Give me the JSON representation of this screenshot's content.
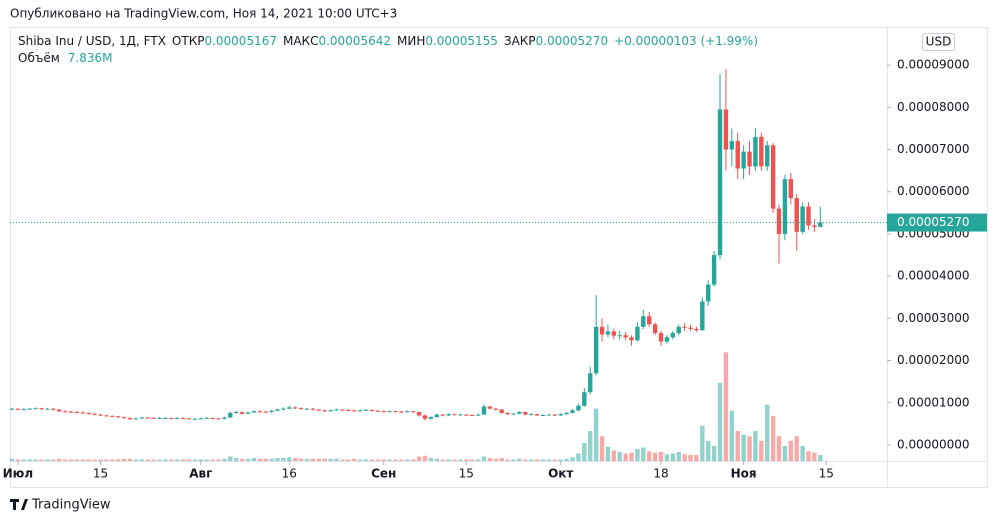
{
  "chart_data": {
    "type": "candlestick",
    "published": "Опубликовано на TradingView.com, Ноя 14, 2021 10:00 UTC+3",
    "symbol": "Shiba Inu / USD, 1Д, FTX",
    "legend_fields": [
      {
        "label": "ОТКР",
        "value": "0.00005167"
      },
      {
        "label": "МАКС",
        "value": "0.00005642"
      },
      {
        "label": "МИН",
        "value": "0.00005155"
      },
      {
        "label": "ЗАКР",
        "value": "0.00005270"
      }
    ],
    "change": "+0.00000103 (+1.99%)",
    "volume_title": "Объём",
    "volume_label": "7.836M",
    "currency": "USD",
    "last_price_label": "0.00005270",
    "brand": "TradingView",
    "up_color": "#26a69a",
    "down_color": "#ef5350",
    "xlim": [
      -0.34,
      148.3
    ],
    "xticks": [
      {
        "value": 1,
        "label": "Июл"
      },
      {
        "value": 15,
        "label": "15"
      },
      {
        "value": 32,
        "label": "Авг"
      },
      {
        "value": 47,
        "label": "16"
      },
      {
        "value": 63,
        "label": "Сен"
      },
      {
        "value": 77,
        "label": "15"
      },
      {
        "value": 93,
        "label": "Окт"
      },
      {
        "value": 110,
        "label": "18"
      },
      {
        "value": 124,
        "label": "Ноя"
      },
      {
        "value": 138,
        "label": "15"
      }
    ],
    "ylim": [
      -3.8e-06,
      9.88e-05
    ],
    "yticks": [
      {
        "value": 0,
        "label": "0.00000000"
      },
      {
        "value": 1e-05,
        "label": "0.00001000"
      },
      {
        "value": 2e-05,
        "label": "0.00002000"
      },
      {
        "value": 3e-05,
        "label": "0.00003000"
      },
      {
        "value": 4e-05,
        "label": "0.00004000"
      },
      {
        "value": 5e-05,
        "label": "0.00005000"
      },
      {
        "value": 6e-05,
        "label": "0.00006000"
      },
      {
        "value": 7e-05,
        "label": "0.00007000"
      },
      {
        "value": 8e-05,
        "label": "0.00008000"
      },
      {
        "value": 9e-05,
        "label": "0.00009000"
      }
    ],
    "volume_lim": [
      0,
      160
    ],
    "ohlc": [
      [
        8.5e-06,
        8.8e-06,
        8.3e-06,
        8.6e-06
      ],
      [
        8.6e-06,
        8.7e-06,
        8.2e-06,
        8.4e-06
      ],
      [
        8.4e-06,
        8.7e-06,
        8.3e-06,
        8.5e-06
      ],
      [
        8.5e-06,
        8.8e-06,
        8.4e-06,
        8.6e-06
      ],
      [
        8.6e-06,
        8.9e-06,
        8.5e-06,
        8.7e-06
      ],
      [
        8.7e-06,
        8.8e-06,
        8.3e-06,
        8.5e-06
      ],
      [
        8.5e-06,
        8.8e-06,
        8.4e-06,
        8.6e-06
      ],
      [
        8.6e-06,
        8.7e-06,
        8.2e-06,
        8.4e-06
      ],
      [
        8.4e-06,
        8.5e-06,
        7.8e-06,
        8e-06
      ],
      [
        8e-06,
        8.2e-06,
        7.7e-06,
        7.9e-06
      ],
      [
        7.9e-06,
        8.1e-06,
        7.6e-06,
        7.8e-06
      ],
      [
        7.8e-06,
        8e-06,
        7.5e-06,
        7.7e-06
      ],
      [
        7.7e-06,
        7.9e-06,
        7.4e-06,
        7.6e-06
      ],
      [
        7.6e-06,
        7.7e-06,
        7.2e-06,
        7.4e-06
      ],
      [
        7.4e-06,
        7.6e-06,
        7e-06,
        7.2e-06
      ],
      [
        7.2e-06,
        7.4e-06,
        6.9e-06,
        7e-06
      ],
      [
        7e-06,
        7.2e-06,
        6.8e-06,
        6.9e-06
      ],
      [
        6.9e-06,
        7e-06,
        6.6e-06,
        6.8e-06
      ],
      [
        6.8e-06,
        6.9e-06,
        6.4e-06,
        6.6e-06
      ],
      [
        6.6e-06,
        6.7e-06,
        6.2e-06,
        6.4e-06
      ],
      [
        6.4e-06,
        6.5e-06,
        5.9e-06,
        6.1e-06
      ],
      [
        6.1e-06,
        6.5e-06,
        6e-06,
        6.3e-06
      ],
      [
        6.3e-06,
        6.7e-06,
        6.2e-06,
        6.5e-06
      ],
      [
        6.5e-06,
        6.6e-06,
        6.2e-06,
        6.4e-06
      ],
      [
        6.4e-06,
        6.6e-06,
        6.2e-06,
        6.3e-06
      ],
      [
        6.3e-06,
        6.6e-06,
        6.2e-06,
        6.4e-06
      ],
      [
        6.4e-06,
        6.6e-06,
        6.2e-06,
        6.4e-06
      ],
      [
        6.4e-06,
        6.5e-06,
        6.1e-06,
        6.3e-06
      ],
      [
        6.3e-06,
        6.6e-06,
        6.2e-06,
        6.4e-06
      ],
      [
        6.4e-06,
        6.5e-06,
        6.1e-06,
        6.3e-06
      ],
      [
        6.3e-06,
        6.4e-06,
        6e-06,
        6.2e-06
      ],
      [
        6.2e-06,
        6.4e-06,
        6.1e-06,
        6.2e-06
      ],
      [
        6.2e-06,
        6.5e-06,
        6.1e-06,
        6.3e-06
      ],
      [
        6.3e-06,
        6.6e-06,
        6.2e-06,
        6.4e-06
      ],
      [
        6.4e-06,
        6.5e-06,
        6.1e-06,
        6.3e-06
      ],
      [
        6.3e-06,
        6.4e-06,
        6e-06,
        6.2e-06
      ],
      [
        6.2e-06,
        6.7e-06,
        6.1e-06,
        6.5e-06
      ],
      [
        6.5e-06,
        7.9e-06,
        6.4e-06,
        7.6e-06
      ],
      [
        7.6e-06,
        8.1e-06,
        7.4e-06,
        7.8e-06
      ],
      [
        7.8e-06,
        7.9e-06,
        7.2e-06,
        7.4e-06
      ],
      [
        7.4e-06,
        7.9e-06,
        7.3e-06,
        7.7e-06
      ],
      [
        7.7e-06,
        8.2e-06,
        7.6e-06,
        8e-06
      ],
      [
        8e-06,
        8.2e-06,
        7.7e-06,
        7.9e-06
      ],
      [
        7.9e-06,
        8.1e-06,
        7.6e-06,
        7.8e-06
      ],
      [
        7.8e-06,
        8.3e-06,
        7.7e-06,
        8.1e-06
      ],
      [
        8.1e-06,
        8.6e-06,
        8e-06,
        8.4e-06
      ],
      [
        8.4e-06,
        8.9e-06,
        8.3e-06,
        8.6e-06
      ],
      [
        8.6e-06,
        9.3e-06,
        8.5e-06,
        8.9e-06
      ],
      [
        8.9e-06,
        9.1e-06,
        8.5e-06,
        8.7e-06
      ],
      [
        8.7e-06,
        8.9e-06,
        8.3e-06,
        8.5e-06
      ],
      [
        8.5e-06,
        8.8e-06,
        8.4e-06,
        8.6e-06
      ],
      [
        8.6e-06,
        8.8e-06,
        8.2e-06,
        8.4e-06
      ],
      [
        8.4e-06,
        8.5e-06,
        8e-06,
        8.2e-06
      ],
      [
        8.2e-06,
        8.4e-06,
        7.8e-06,
        8e-06
      ],
      [
        8e-06,
        8.4e-06,
        7.9e-06,
        8.2e-06
      ],
      [
        8.2e-06,
        8.6e-06,
        8.1e-06,
        8.4e-06
      ],
      [
        8.4e-06,
        8.5e-06,
        8.1e-06,
        8.3e-06
      ],
      [
        8.3e-06,
        8.5e-06,
        8e-06,
        8.2e-06
      ],
      [
        8.2e-06,
        8.3e-06,
        7.8e-06,
        8e-06
      ],
      [
        8e-06,
        8.4e-06,
        7.9e-06,
        8.2e-06
      ],
      [
        8.2e-06,
        8.5e-06,
        8.1e-06,
        8.3e-06
      ],
      [
        8.3e-06,
        8.4e-06,
        7.9e-06,
        8.1e-06
      ],
      [
        8.1e-06,
        8.3e-06,
        7.8e-06,
        8e-06
      ],
      [
        8e-06,
        8.2e-06,
        7.7e-06,
        7.9e-06
      ],
      [
        7.9e-06,
        8.2e-06,
        7.8e-06,
        8e-06
      ],
      [
        8e-06,
        8.1e-06,
        7.7e-06,
        7.9e-06
      ],
      [
        7.9e-06,
        8.1e-06,
        7.6e-06,
        7.8e-06
      ],
      [
        7.8e-06,
        8.2e-06,
        7.7e-06,
        8e-06
      ],
      [
        8e-06,
        8.1e-06,
        7.6e-06,
        7.8e-06
      ],
      [
        7.8e-06,
        7.9e-06,
        6.8e-06,
        7e-06
      ],
      [
        7e-06,
        7.2e-06,
        5.8e-06,
        6.2e-06
      ],
      [
        6.2e-06,
        6.8e-06,
        6e-06,
        6.6e-06
      ],
      [
        6.6e-06,
        7.4e-06,
        6.5e-06,
        7.2e-06
      ],
      [
        7.2e-06,
        7.3e-06,
        6.8e-06,
        7e-06
      ],
      [
        7e-06,
        7.5e-06,
        6.9e-06,
        7.3e-06
      ],
      [
        7.3e-06,
        7.4e-06,
        7e-06,
        7.2e-06
      ],
      [
        7.2e-06,
        7.4e-06,
        7e-06,
        7.2e-06
      ],
      [
        7.2e-06,
        7.3e-06,
        6.9e-06,
        7.1e-06
      ],
      [
        7.1e-06,
        7.2e-06,
        6.8e-06,
        7e-06
      ],
      [
        7e-06,
        7.4e-06,
        6.9e-06,
        7.2e-06
      ],
      [
        7.2e-06,
        9.6e-06,
        7.1e-06,
        9.1e-06
      ],
      [
        9.1e-06,
        9.3e-06,
        8.4e-06,
        8.6e-06
      ],
      [
        8.6e-06,
        8.8e-06,
        8.1e-06,
        8.4e-06
      ],
      [
        8.4e-06,
        8.5e-06,
        7.4e-06,
        7.6e-06
      ],
      [
        7.6e-06,
        7.7e-06,
        7.1e-06,
        7.3e-06
      ],
      [
        7.3e-06,
        7.6e-06,
        7.2e-06,
        7.4e-06
      ],
      [
        7.4e-06,
        8e-06,
        7.3e-06,
        7.8e-06
      ],
      [
        7.8e-06,
        7.9e-06,
        7e-06,
        7.2e-06
      ],
      [
        7.2e-06,
        7.5e-06,
        7.1e-06,
        7.3e-06
      ],
      [
        7.3e-06,
        7.4e-06,
        6.8e-06,
        7e-06
      ],
      [
        7e-06,
        7.3e-06,
        6.9e-06,
        7.1e-06
      ],
      [
        7.1e-06,
        7.4e-06,
        7e-06,
        7.2e-06
      ],
      [
        7.2e-06,
        7.3e-06,
        6.8e-06,
        7e-06
      ],
      [
        7e-06,
        7.5e-06,
        6.9e-06,
        7.3e-06
      ],
      [
        7.3e-06,
        7.8e-06,
        7.2e-06,
        7.6e-06
      ],
      [
        7.6e-06,
        8.5e-06,
        7.5e-06,
        8.2e-06
      ],
      [
        8.2e-06,
        9.8e-06,
        8e-06,
        9.3e-06
      ],
      [
        9.3e-06,
        1.35e-05,
        9e-06,
        1.25e-05
      ],
      [
        1.25e-05,
        1.85e-05,
        1.2e-05,
        1.7e-05
      ],
      [
        1.7e-05,
        3.55e-05,
        1.65e-05,
        2.8e-05
      ],
      [
        2.8e-05,
        3e-05,
        2.45e-05,
        2.62e-05
      ],
      [
        2.62e-05,
        2.85e-05,
        2.55e-05,
        2.69e-05
      ],
      [
        2.69e-05,
        2.75e-05,
        2.5e-05,
        2.59e-05
      ],
      [
        2.59e-05,
        2.7e-05,
        2.5e-05,
        2.6e-05
      ],
      [
        2.6e-05,
        2.68e-05,
        2.48e-05,
        2.55e-05
      ],
      [
        2.55e-05,
        2.6e-05,
        2.35e-05,
        2.48e-05
      ],
      [
        2.48e-05,
        2.9e-05,
        2.45e-05,
        2.8e-05
      ],
      [
        2.8e-05,
        3.2e-05,
        2.75e-05,
        3.05e-05
      ],
      [
        3.05e-05,
        3.15e-05,
        2.8e-05,
        2.86e-05
      ],
      [
        2.86e-05,
        2.9e-05,
        2.6e-05,
        2.65e-05
      ],
      [
        2.65e-05,
        2.7e-05,
        2.35e-05,
        2.45e-05
      ],
      [
        2.45e-05,
        2.6e-05,
        2.4e-05,
        2.55e-05
      ],
      [
        2.55e-05,
        2.7e-05,
        2.5e-05,
        2.65e-05
      ],
      [
        2.65e-05,
        2.85e-05,
        2.6e-05,
        2.8e-05
      ],
      [
        2.8e-05,
        2.88e-05,
        2.7e-05,
        2.78e-05
      ],
      [
        2.78e-05,
        2.85e-05,
        2.7e-05,
        2.75e-05
      ],
      [
        2.75e-05,
        2.8e-05,
        2.68e-05,
        2.72e-05
      ],
      [
        2.72e-05,
        3.5e-05,
        2.7e-05,
        3.4e-05
      ],
      [
        3.4e-05,
        3.9e-05,
        3.3e-05,
        3.8e-05
      ],
      [
        3.8e-05,
        4.6e-05,
        3.75e-05,
        4.5e-05
      ],
      [
        4.5e-05,
        8.8e-05,
        4.4e-05,
        7.95e-05
      ],
      [
        7.95e-05,
        8.9e-05,
        6.5e-05,
        7e-05
      ],
      [
        7e-05,
        7.5e-05,
        6.6e-05,
        7.2e-05
      ],
      [
        7.2e-05,
        7.4e-05,
        6.3e-05,
        6.55e-05
      ],
      [
        6.55e-05,
        7.1e-05,
        6.3e-05,
        6.95e-05
      ],
      [
        6.95e-05,
        7.2e-05,
        6.4e-05,
        6.6e-05
      ],
      [
        6.6e-05,
        7.5e-05,
        6.5e-05,
        7.3e-05
      ],
      [
        7.3e-05,
        7.4e-05,
        6.5e-05,
        6.6e-05
      ],
      [
        6.6e-05,
        7.2e-05,
        6.5e-05,
        7.1e-05
      ],
      [
        7.1e-05,
        7.15e-05,
        5.5e-05,
        5.6e-05
      ],
      [
        5.6e-05,
        5.7e-05,
        4.3e-05,
        5e-05
      ],
      [
        5e-05,
        6.4e-05,
        4.85e-05,
        6.3e-05
      ],
      [
        6.3e-05,
        6.45e-05,
        5.7e-05,
        5.85e-05
      ],
      [
        5.85e-05,
        5.95e-05,
        4.6e-05,
        5.05e-05
      ],
      [
        5.05e-05,
        5.75e-05,
        5e-05,
        5.65e-05
      ],
      [
        5.65e-05,
        5.75e-05,
        5.1e-05,
        5.2e-05
      ],
      [
        5.2e-05,
        5.35e-05,
        5.05e-05,
        5.167e-05
      ],
      [
        5.167e-05,
        5.642e-05,
        5.155e-05,
        5.27e-05
      ]
    ],
    "volume": [
      3,
      2,
      2,
      2,
      2,
      2,
      2,
      2,
      3,
      2,
      2,
      2,
      2,
      2,
      2,
      2,
      2,
      2,
      2,
      3,
      3,
      2,
      2,
      2,
      2,
      2,
      2,
      2,
      2,
      2,
      2,
      2,
      2,
      2,
      2,
      2,
      3,
      6,
      4,
      3,
      3,
      4,
      3,
      3,
      3,
      4,
      4,
      5,
      4,
      3,
      3,
      3,
      3,
      3,
      3,
      3,
      2,
      2,
      3,
      2,
      2,
      2,
      2,
      2,
      2,
      2,
      2,
      2,
      2,
      6,
      7,
      4,
      3,
      2,
      2,
      2,
      2,
      2,
      2,
      2,
      6,
      4,
      3,
      4,
      2,
      2,
      3,
      2,
      2,
      2,
      2,
      2,
      2,
      2,
      3,
      5,
      10,
      24,
      40,
      70,
      33,
      19,
      14,
      12,
      10,
      11,
      16,
      18,
      13,
      11,
      12,
      9,
      10,
      12,
      9,
      8,
      8,
      47,
      27,
      20,
      104,
      145,
      67,
      40,
      35,
      33,
      40,
      27,
      75,
      60,
      33,
      20,
      27,
      33,
      20,
      13,
      11,
      7.836
    ]
  }
}
